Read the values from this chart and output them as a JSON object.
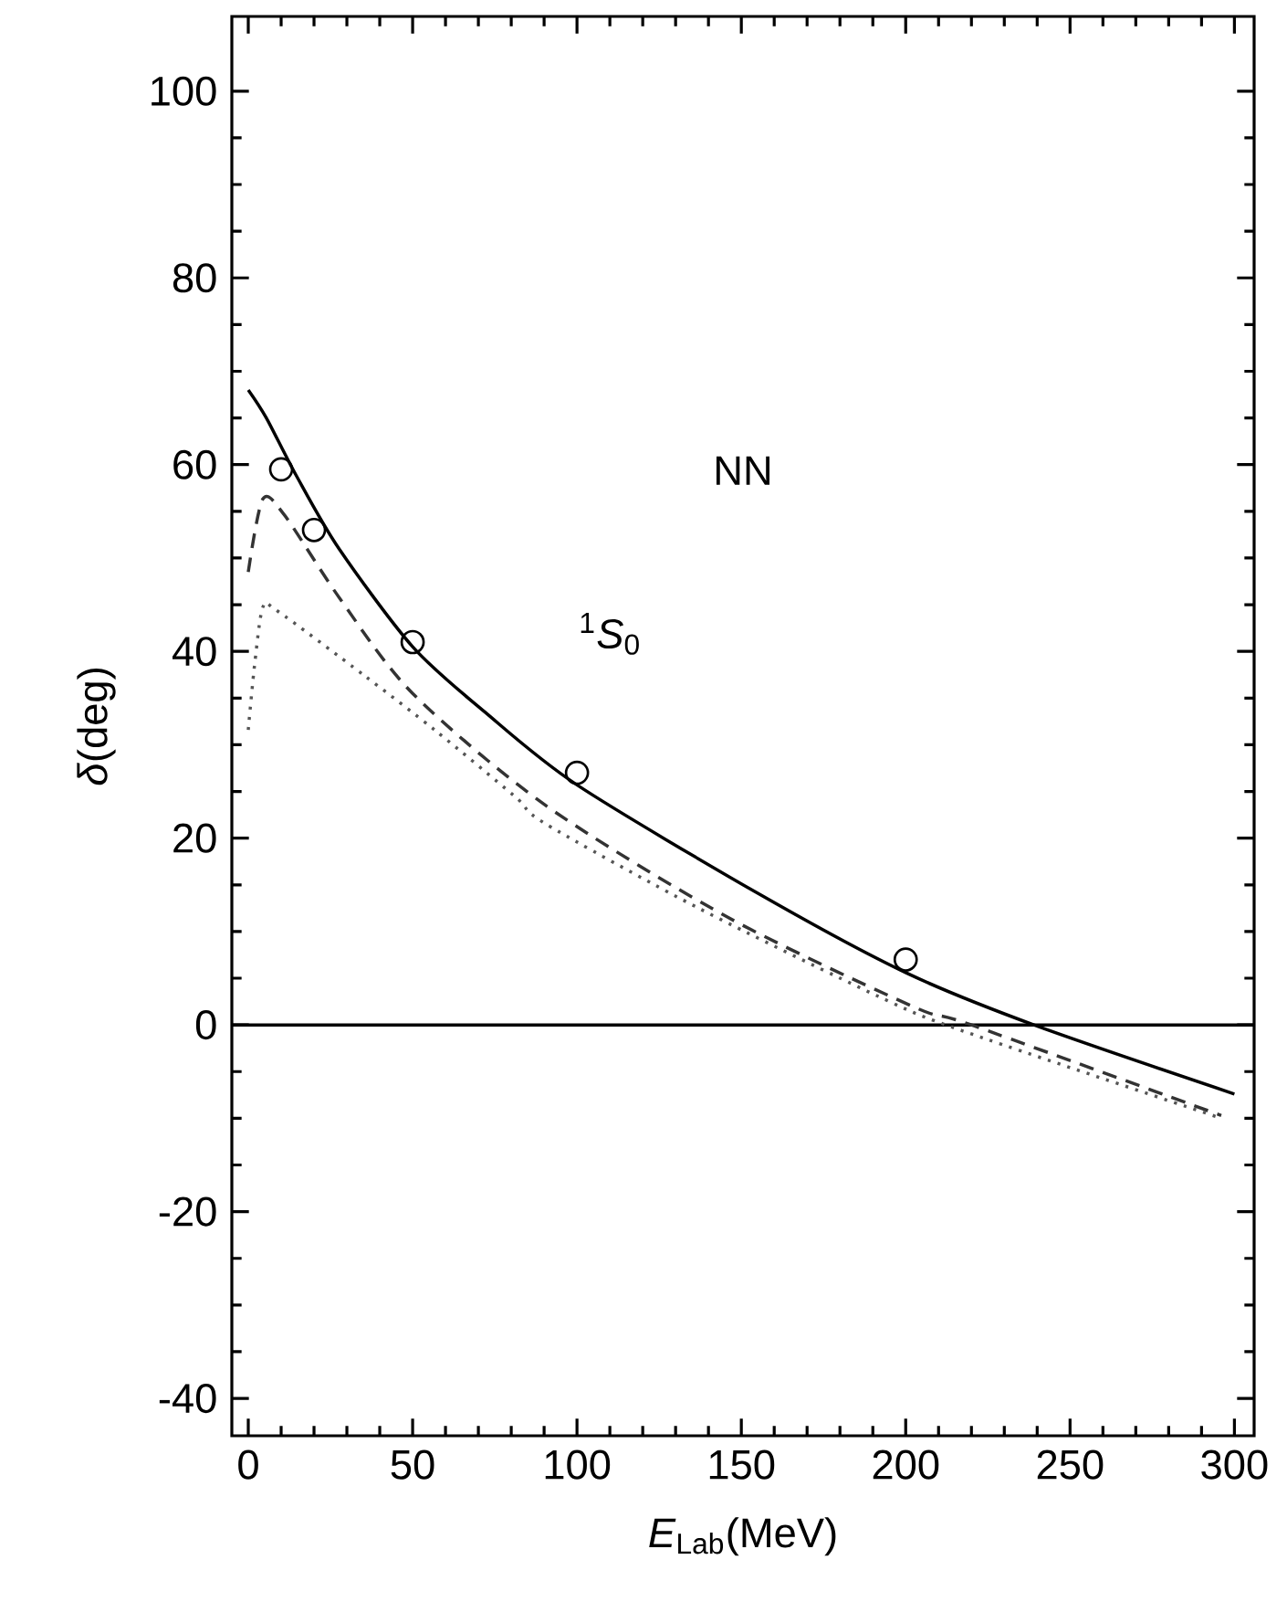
{
  "chart_data": {
    "type": "line",
    "xlabel": "*E*$_{Lab}$(MeV)",
    "ylabel": "*δ*(deg)",
    "annotations": [
      "NN",
      "$^{1}$*S*$_{0}$"
    ],
    "xlim": [
      -5,
      306
    ],
    "ylim": [
      -44,
      108
    ],
    "xticks": [
      0,
      50,
      100,
      150,
      200,
      250,
      300
    ],
    "yticks": [
      -40,
      -20,
      0,
      20,
      40,
      60,
      80,
      100
    ],
    "grid": false,
    "ref_lines": [
      {
        "axis": "y",
        "value": 0,
        "color": "#000000",
        "line_style": "solid"
      }
    ],
    "series": [
      {
        "color": "#000000",
        "line_style": "solid",
        "marker": "none",
        "x": [
          0,
          5.5,
          14.5,
          27.6,
          50,
          72,
          100,
          155.5,
          200,
          239,
          300
        ],
        "values": [
          68,
          65,
          58.9,
          51,
          40.5,
          33.5,
          25.7,
          14,
          5.6,
          0,
          -7.4
        ]
      },
      {
        "color": "#333333",
        "line_style": "dashed",
        "marker": "none",
        "x": [
          0,
          4.4,
          11,
          27.6,
          50,
          90.5,
          146,
          202,
          220,
          296
        ],
        "values": [
          48.5,
          56.3,
          54.6,
          45.8,
          35.5,
          23.5,
          11.5,
          2,
          0,
          -9.7
        ]
      },
      {
        "color": "#555555",
        "line_style": "dotted",
        "marker": "none",
        "x": [
          0,
          2,
          4.5,
          9,
          35,
          57,
          81,
          90.6,
          137,
          192,
          217,
          296
        ],
        "values": [
          31.6,
          38.8,
          44.8,
          44.3,
          37.5,
          31.5,
          24.5,
          21.5,
          12.5,
          3,
          -0.6,
          -10
        ]
      },
      {
        "type": "scatter",
        "color": "#000000",
        "marker": "circle",
        "x": [
          10,
          20,
          50,
          100,
          200
        ],
        "values": [
          59.5,
          53,
          41,
          27,
          7
        ]
      }
    ]
  }
}
